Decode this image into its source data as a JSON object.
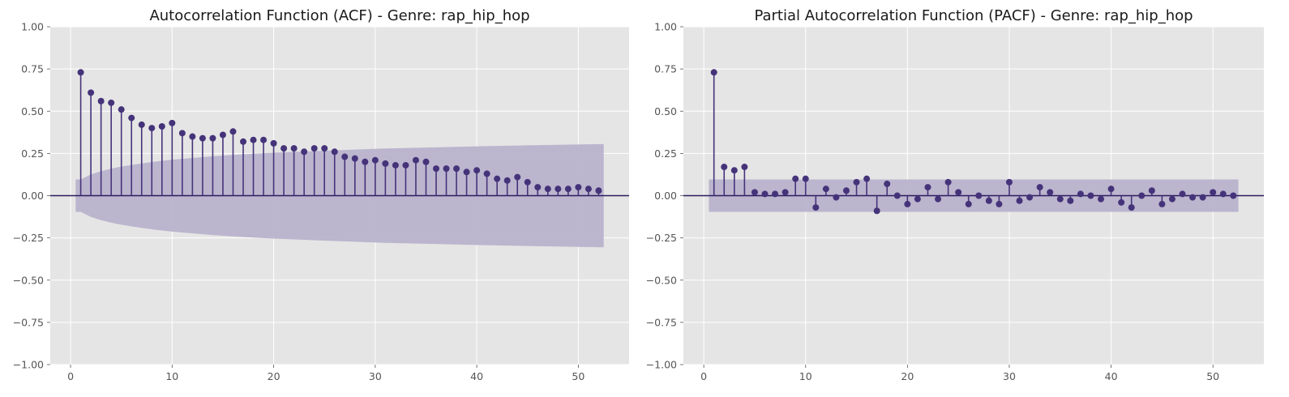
{
  "chart_data": [
    {
      "type": "stem",
      "title": "Autocorrelation Function (ACF) - Genre: rap_hip_hop",
      "xlabel": "",
      "ylabel": "",
      "xlim": [
        -2,
        55
      ],
      "ylim": [
        -1.0,
        1.0
      ],
      "xticks": [
        0,
        10,
        20,
        30,
        40,
        50
      ],
      "yticks": [
        -1.0,
        -0.75,
        -0.5,
        -0.25,
        0.0,
        0.25,
        0.5,
        0.75,
        1.0
      ],
      "xtick_labels": [
        "0",
        "10",
        "20",
        "30",
        "40",
        "50"
      ],
      "ytick_labels": [
        "−1.00",
        "−0.75",
        "−0.50",
        "−0.25",
        "0.00",
        "0.25",
        "0.50",
        "0.75",
        "1.00"
      ],
      "grid": true,
      "lags": [
        1,
        2,
        3,
        4,
        5,
        6,
        7,
        8,
        9,
        10,
        11,
        12,
        13,
        14,
        15,
        16,
        17,
        18,
        19,
        20,
        21,
        22,
        23,
        24,
        25,
        26,
        27,
        28,
        29,
        30,
        31,
        32,
        33,
        34,
        35,
        36,
        37,
        38,
        39,
        40,
        41,
        42,
        43,
        44,
        45,
        46,
        47,
        48,
        49,
        50,
        51,
        52
      ],
      "values": [
        0.73,
        0.61,
        0.56,
        0.55,
        0.51,
        0.46,
        0.42,
        0.4,
        0.41,
        0.43,
        0.37,
        0.35,
        0.34,
        0.34,
        0.36,
        0.38,
        0.32,
        0.33,
        0.33,
        0.31,
        0.28,
        0.28,
        0.26,
        0.28,
        0.28,
        0.26,
        0.23,
        0.22,
        0.2,
        0.21,
        0.19,
        0.18,
        0.18,
        0.21,
        0.2,
        0.16,
        0.16,
        0.16,
        0.14,
        0.15,
        0.13,
        0.1,
        0.09,
        0.11,
        0.08,
        0.05,
        0.04,
        0.04,
        0.04,
        0.05,
        0.04,
        0.03
      ],
      "confint_lags": [
        0.5,
        1,
        2,
        3,
        4,
        5,
        6,
        7,
        8,
        9,
        10,
        12,
        14,
        16,
        18,
        20,
        22,
        25,
        28,
        31,
        35,
        40,
        45,
        52.5
      ],
      "confint_upper": [
        0.096,
        0.096,
        0.126,
        0.145,
        0.16,
        0.172,
        0.182,
        0.191,
        0.199,
        0.206,
        0.213,
        0.223,
        0.233,
        0.241,
        0.248,
        0.254,
        0.259,
        0.266,
        0.273,
        0.279,
        0.285,
        0.292,
        0.298,
        0.306
      ],
      "colors": {
        "marker": "#45337a",
        "band": "#b8b2cc",
        "zero_line": "#2c1a5e"
      }
    },
    {
      "type": "stem",
      "title": "Partial Autocorrelation Function (PACF) - Genre: rap_hip_hop",
      "xlabel": "",
      "ylabel": "",
      "xlim": [
        -2,
        55
      ],
      "ylim": [
        -1.0,
        1.0
      ],
      "xticks": [
        0,
        10,
        20,
        30,
        40,
        50
      ],
      "yticks": [
        -1.0,
        -0.75,
        -0.5,
        -0.25,
        0.0,
        0.25,
        0.5,
        0.75,
        1.0
      ],
      "xtick_labels": [
        "0",
        "10",
        "20",
        "30",
        "40",
        "50"
      ],
      "ytick_labels": [
        "−1.00",
        "−0.75",
        "−0.50",
        "−0.25",
        "0.00",
        "0.25",
        "0.50",
        "0.75",
        "1.00"
      ],
      "grid": true,
      "lags": [
        1,
        2,
        3,
        4,
        5,
        6,
        7,
        8,
        9,
        10,
        11,
        12,
        13,
        14,
        15,
        16,
        17,
        18,
        19,
        20,
        21,
        22,
        23,
        24,
        25,
        26,
        27,
        28,
        29,
        30,
        31,
        32,
        33,
        34,
        35,
        36,
        37,
        38,
        39,
        40,
        41,
        42,
        43,
        44,
        45,
        46,
        47,
        48,
        49,
        50,
        51,
        52
      ],
      "values": [
        0.73,
        0.17,
        0.15,
        0.17,
        0.02,
        0.01,
        0.01,
        0.02,
        0.1,
        0.1,
        -0.07,
        0.04,
        -0.01,
        0.03,
        0.08,
        0.1,
        -0.09,
        0.07,
        0.0,
        -0.05,
        -0.02,
        0.05,
        -0.02,
        0.08,
        0.02,
        -0.05,
        0.0,
        -0.03,
        -0.05,
        0.08,
        -0.03,
        -0.01,
        0.05,
        0.02,
        -0.02,
        -0.03,
        0.01,
        0.0,
        -0.02,
        0.04,
        -0.04,
        -0.07,
        0.0,
        0.03,
        -0.05,
        -0.02,
        0.01,
        -0.01,
        -0.01,
        0.02,
        0.01,
        0.0
      ],
      "confint_lags": [
        0.5,
        52.5
      ],
      "confint_upper": [
        0.096,
        0.096
      ],
      "colors": {
        "marker": "#45337a",
        "band": "#b8b2cc",
        "zero_line": "#2c1a5e"
      }
    }
  ]
}
